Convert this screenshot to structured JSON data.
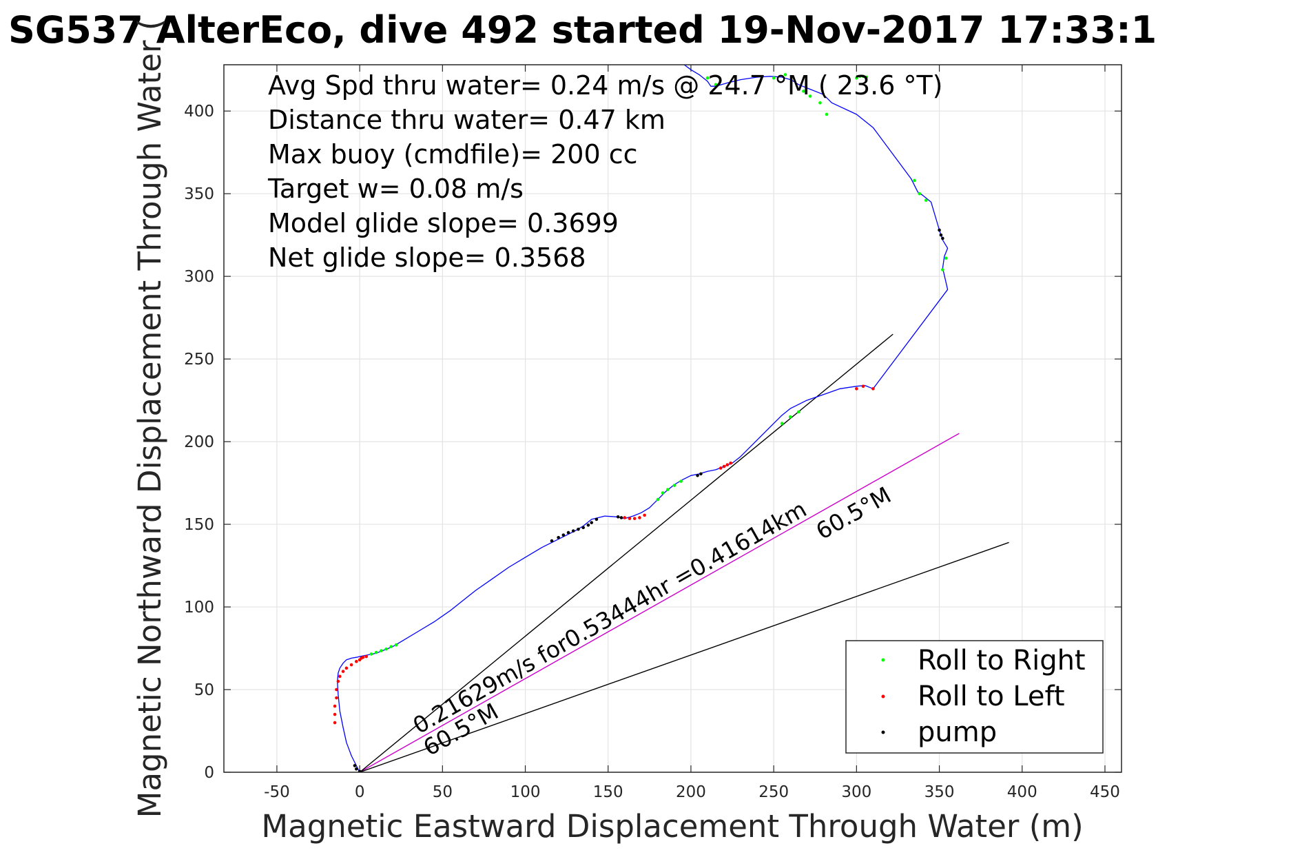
{
  "chart_data": {
    "type": "line",
    "title": "SG537 AlterEco, dive 492 started 19-Nov-2017 17:33:1",
    "xlabel": "Magnetic Eastward Displacement Through Water (m)",
    "ylabel": "Magnetic Northward Displacement Through Water (",
    "xlim": [
      -82,
      460
    ],
    "ylim": [
      0,
      428
    ],
    "xticks": [
      -50,
      0,
      50,
      100,
      150,
      200,
      250,
      300,
      350,
      400,
      450
    ],
    "yticks": [
      0,
      50,
      100,
      150,
      200,
      250,
      300,
      350,
      400
    ],
    "grid": true,
    "legend_position": "bottom-right",
    "info_lines": [
      "Avg Spd thru water=  0.24 m/s @  24.7 °M ( 23.6 °T)",
      "Distance thru water=  0.47 km",
      "Max buoy (cmdfile)= 200 cc",
      "Target w= 0.08 m/s",
      "Model glide slope= 0.3699",
      "Net glide slope= 0.3568"
    ],
    "annotations": {
      "current_label": "0.21629m/s for0.53444hr =0.41614km",
      "current_dir_start": "60.5°M",
      "current_dir_end": "60.5°M"
    },
    "legend": [
      {
        "label": "Roll to Right",
        "color": "#00ff00"
      },
      {
        "label": "Roll to Left",
        "color": "#ff0000"
      },
      {
        "label": "pump",
        "color": "#000000"
      }
    ],
    "track": {
      "name": "track",
      "color": "#0000ff",
      "x": [
        0,
        -5,
        -8,
        -10,
        -12,
        -13,
        -13.5,
        -13,
        -12,
        -10,
        -8,
        -5,
        -2,
        0,
        5,
        10,
        15,
        20,
        25,
        35,
        45,
        55,
        65,
        70,
        80,
        90,
        100,
        110,
        120,
        125,
        130,
        135,
        140,
        148,
        155,
        160,
        165,
        170,
        175,
        180,
        185,
        190,
        195,
        200,
        205,
        210,
        215,
        220,
        225,
        230,
        235,
        240,
        250,
        255,
        260,
        265,
        270,
        280,
        290,
        300,
        305,
        310,
        355,
        352,
        353,
        355,
        352,
        350,
        345,
        340,
        337,
        333,
        310,
        300,
        285,
        280,
        270,
        265,
        262,
        260,
        255,
        248,
        240,
        230,
        222,
        215,
        212,
        210,
        205,
        200,
        196
      ],
      "y": [
        0,
        10,
        18,
        27,
        37,
        47,
        55,
        60,
        63,
        66,
        68,
        69,
        69.5,
        70,
        71,
        72,
        74,
        76,
        79,
        85,
        91,
        98,
        106,
        110,
        117,
        124,
        130,
        136,
        141,
        143.5,
        146,
        149,
        153,
        155,
        154.5,
        153.5,
        155,
        157,
        160,
        165,
        170,
        174,
        177,
        179.5,
        180.5,
        182,
        183,
        185,
        187,
        191,
        196,
        201,
        211,
        216,
        220,
        222.5,
        225,
        228.5,
        232,
        233.5,
        234,
        232,
        292,
        305,
        312,
        317,
        322,
        328,
        345,
        349,
        351,
        359,
        390,
        398,
        405,
        410,
        414,
        416,
        418,
        419,
        420.5,
        421,
        420.5,
        419,
        417,
        415,
        415,
        418,
        422,
        425,
        428
      ]
    },
    "roll_right_points": {
      "x": [
        7,
        10,
        13,
        16,
        19,
        22,
        180,
        183,
        186,
        190,
        194,
        255,
        260,
        265,
        335,
        338,
        342,
        352,
        354,
        300,
        302,
        304,
        306,
        268,
        272,
        278,
        282,
        215,
        210,
        250,
        257
      ],
      "y": [
        71.5,
        72.5,
        73.5,
        74.5,
        76,
        77,
        165,
        169,
        171,
        173.5,
        176,
        211,
        215,
        218,
        358,
        350,
        346,
        304,
        311,
        420,
        421,
        421,
        420.5,
        412,
        409,
        405,
        398,
        416,
        420,
        420,
        422
      ]
    },
    "roll_left_points": {
      "x": [
        -15,
        -15,
        -15,
        -14,
        -14,
        -13,
        -12,
        -10,
        -8,
        -5,
        -2,
        0,
        1,
        2,
        4,
        160,
        163,
        166,
        169,
        172,
        218,
        220,
        222,
        224,
        300,
        304,
        310
      ],
      "y": [
        30,
        35,
        40,
        45,
        50,
        55,
        58,
        61,
        63,
        65,
        67,
        68,
        69,
        69.5,
        70,
        154,
        153.5,
        153.5,
        154,
        155.5,
        184,
        185,
        186,
        187,
        232,
        233.5,
        232
      ]
    },
    "pump_points": {
      "x": [
        -2,
        -3,
        0,
        116,
        120,
        123,
        126,
        129,
        132,
        135,
        138,
        140,
        143,
        156,
        158,
        204,
        206,
        350,
        351,
        352
      ],
      "y": [
        2,
        4,
        0.5,
        140,
        142,
        143.5,
        145,
        146,
        147,
        148,
        149.5,
        151,
        153,
        154.5,
        154,
        179.5,
        180.5,
        328,
        325,
        323
      ]
    },
    "reference_lines": [
      {
        "name": "current-line",
        "color": "#cc00cc",
        "x": [
          0,
          362
        ],
        "y": [
          0,
          205
        ]
      },
      {
        "name": "glide-line-upper",
        "color": "#000000",
        "x": [
          0,
          322
        ],
        "y": [
          0,
          265
        ]
      },
      {
        "name": "glide-line-lower",
        "color": "#000000",
        "x": [
          0,
          392
        ],
        "y": [
          0,
          139
        ]
      }
    ]
  }
}
